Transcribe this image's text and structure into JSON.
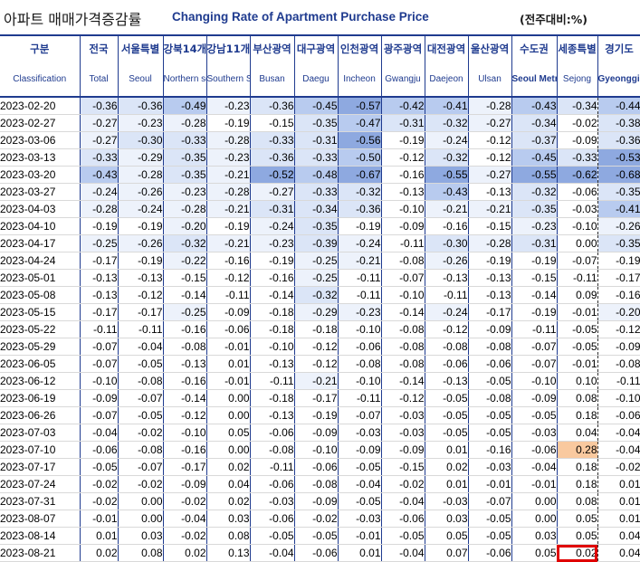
{
  "title": {
    "korean": "아파트 매매가격증감률",
    "english": "Changing Rate of Apartment Purchase Price",
    "unit": "(전주대비:%)"
  },
  "columns": [
    {
      "ko": "구분",
      "en": "Classification"
    },
    {
      "ko": "전국",
      "en": "Total"
    },
    {
      "ko": "서울특별",
      "en": "Seoul"
    },
    {
      "ko": "강북14개",
      "en": "Northern seoul"
    },
    {
      "ko": "강남11개",
      "en": "Southern Seoul"
    },
    {
      "ko": "부산광역",
      "en": "Busan"
    },
    {
      "ko": "대구광역",
      "en": "Daegu"
    },
    {
      "ko": "인천광역",
      "en": "Incheon"
    },
    {
      "ko": "광주광역",
      "en": "Gwangju"
    },
    {
      "ko": "대전광역",
      "en": "Daejeon"
    },
    {
      "ko": "울산광역",
      "en": "Ulsan"
    },
    {
      "ko": "수도권",
      "en": "Seoul Metropolitan Area"
    },
    {
      "ko": "세종특별",
      "en": "Sejong"
    },
    {
      "ko": "경기도",
      "en": "Gyeonggi-do"
    }
  ],
  "rows": [
    {
      "date": "2023-02-20",
      "values": [
        "-0.36",
        "-0.36",
        "-0.49",
        "-0.23",
        "-0.36",
        "-0.45",
        "-0.57",
        "-0.42",
        "-0.41",
        "-0.28",
        "-0.43",
        "-0.34",
        "-0.44"
      ]
    },
    {
      "date": "2023-02-27",
      "values": [
        "-0.27",
        "-0.23",
        "-0.28",
        "-0.19",
        "-0.15",
        "-0.35",
        "-0.47",
        "-0.31",
        "-0.32",
        "-0.27",
        "-0.34",
        "-0.02",
        "-0.38"
      ]
    },
    {
      "date": "2023-03-06",
      "values": [
        "-0.27",
        "-0.30",
        "-0.33",
        "-0.28",
        "-0.33",
        "-0.31",
        "-0.56",
        "-0.19",
        "-0.24",
        "-0.12",
        "-0.37",
        "-0.09",
        "-0.36"
      ]
    },
    {
      "date": "2023-03-13",
      "values": [
        "-0.33",
        "-0.29",
        "-0.35",
        "-0.23",
        "-0.36",
        "-0.33",
        "-0.50",
        "-0.12",
        "-0.32",
        "-0.12",
        "-0.45",
        "-0.33",
        "-0.53"
      ]
    },
    {
      "date": "2023-03-20",
      "values": [
        "-0.43",
        "-0.28",
        "-0.35",
        "-0.21",
        "-0.52",
        "-0.48",
        "-0.67",
        "-0.16",
        "-0.55",
        "-0.27",
        "-0.55",
        "-0.62",
        "-0.68"
      ]
    },
    {
      "date": "2023-03-27",
      "values": [
        "-0.24",
        "-0.26",
        "-0.23",
        "-0.28",
        "-0.27",
        "-0.33",
        "-0.32",
        "-0.13",
        "-0.43",
        "-0.13",
        "-0.32",
        "-0.06",
        "-0.35"
      ]
    },
    {
      "date": "2023-04-03",
      "values": [
        "-0.28",
        "-0.24",
        "-0.28",
        "-0.21",
        "-0.31",
        "-0.34",
        "-0.36",
        "-0.10",
        "-0.21",
        "-0.21",
        "-0.35",
        "-0.03",
        "-0.41"
      ]
    },
    {
      "date": "2023-04-10",
      "values": [
        "-0.19",
        "-0.19",
        "-0.20",
        "-0.19",
        "-0.24",
        "-0.35",
        "-0.19",
        "-0.09",
        "-0.16",
        "-0.15",
        "-0.23",
        "-0.10",
        "-0.26"
      ]
    },
    {
      "date": "2023-04-17",
      "values": [
        "-0.25",
        "-0.26",
        "-0.32",
        "-0.21",
        "-0.23",
        "-0.39",
        "-0.24",
        "-0.11",
        "-0.30",
        "-0.28",
        "-0.31",
        "0.00",
        "-0.35"
      ]
    },
    {
      "date": "2023-04-24",
      "values": [
        "-0.17",
        "-0.19",
        "-0.22",
        "-0.16",
        "-0.19",
        "-0.25",
        "-0.21",
        "-0.08",
        "-0.26",
        "-0.19",
        "-0.19",
        "-0.07",
        "-0.19"
      ]
    },
    {
      "date": "2023-05-01",
      "values": [
        "-0.13",
        "-0.13",
        "-0.15",
        "-0.12",
        "-0.16",
        "-0.25",
        "-0.11",
        "-0.07",
        "-0.13",
        "-0.13",
        "-0.15",
        "-0.11",
        "-0.17"
      ]
    },
    {
      "date": "2023-05-08",
      "values": [
        "-0.13",
        "-0.12",
        "-0.14",
        "-0.11",
        "-0.14",
        "-0.32",
        "-0.11",
        "-0.10",
        "-0.11",
        "-0.13",
        "-0.14",
        "0.09",
        "-0.16"
      ]
    },
    {
      "date": "2023-05-15",
      "values": [
        "-0.17",
        "-0.17",
        "-0.25",
        "-0.09",
        "-0.18",
        "-0.29",
        "-0.23",
        "-0.14",
        "-0.24",
        "-0.17",
        "-0.19",
        "-0.01",
        "-0.20"
      ]
    },
    {
      "date": "2023-05-22",
      "values": [
        "-0.11",
        "-0.11",
        "-0.16",
        "-0.06",
        "-0.18",
        "-0.18",
        "-0.10",
        "-0.08",
        "-0.12",
        "-0.09",
        "-0.11",
        "-0.05",
        "-0.12"
      ]
    },
    {
      "date": "2023-05-29",
      "values": [
        "-0.07",
        "-0.04",
        "-0.08",
        "-0.01",
        "-0.10",
        "-0.12",
        "-0.06",
        "-0.08",
        "-0.08",
        "-0.08",
        "-0.07",
        "-0.05",
        "-0.09"
      ]
    },
    {
      "date": "2023-06-05",
      "values": [
        "-0.07",
        "-0.05",
        "-0.13",
        "0.01",
        "-0.13",
        "-0.12",
        "-0.08",
        "-0.08",
        "-0.06",
        "-0.06",
        "-0.07",
        "-0.01",
        "-0.08"
      ]
    },
    {
      "date": "2023-06-12",
      "values": [
        "-0.10",
        "-0.08",
        "-0.16",
        "-0.01",
        "-0.11",
        "-0.21",
        "-0.10",
        "-0.14",
        "-0.13",
        "-0.05",
        "-0.10",
        "0.10",
        "-0.11"
      ]
    },
    {
      "date": "2023-06-19",
      "values": [
        "-0.09",
        "-0.07",
        "-0.14",
        "0.00",
        "-0.18",
        "-0.17",
        "-0.11",
        "-0.12",
        "-0.05",
        "-0.08",
        "-0.09",
        "0.08",
        "-0.10"
      ]
    },
    {
      "date": "2023-06-26",
      "values": [
        "-0.07",
        "-0.05",
        "-0.12",
        "0.00",
        "-0.13",
        "-0.19",
        "-0.07",
        "-0.03",
        "-0.05",
        "-0.05",
        "-0.05",
        "0.18",
        "-0.06"
      ]
    },
    {
      "date": "2023-07-03",
      "values": [
        "-0.04",
        "-0.02",
        "-0.10",
        "0.05",
        "-0.06",
        "-0.09",
        "-0.03",
        "-0.03",
        "-0.05",
        "-0.05",
        "-0.03",
        "0.04",
        "-0.04"
      ]
    },
    {
      "date": "2023-07-10",
      "values": [
        "-0.06",
        "-0.08",
        "-0.16",
        "0.00",
        "-0.08",
        "-0.10",
        "-0.09",
        "-0.09",
        "0.01",
        "-0.16",
        "-0.06",
        "0.28",
        "-0.04"
      ]
    },
    {
      "date": "2023-07-17",
      "values": [
        "-0.05",
        "-0.07",
        "-0.17",
        "0.02",
        "-0.11",
        "-0.06",
        "-0.05",
        "-0.15",
        "0.02",
        "-0.03",
        "-0.04",
        "0.18",
        "-0.02"
      ]
    },
    {
      "date": "2023-07-24",
      "values": [
        "-0.02",
        "-0.02",
        "-0.09",
        "0.04",
        "-0.06",
        "-0.08",
        "-0.04",
        "-0.02",
        "0.01",
        "-0.01",
        "-0.01",
        "0.18",
        "0.01"
      ]
    },
    {
      "date": "2023-07-31",
      "values": [
        "-0.02",
        "0.00",
        "-0.02",
        "0.02",
        "-0.03",
        "-0.09",
        "-0.05",
        "-0.04",
        "-0.03",
        "-0.07",
        "0.00",
        "0.08",
        "0.01"
      ]
    },
    {
      "date": "2023-08-07",
      "values": [
        "-0.01",
        "0.00",
        "-0.04",
        "0.03",
        "-0.06",
        "-0.02",
        "-0.03",
        "-0.06",
        "0.03",
        "-0.05",
        "0.00",
        "0.05",
        "0.01"
      ]
    },
    {
      "date": "2023-08-14",
      "values": [
        "0.01",
        "0.03",
        "-0.02",
        "0.08",
        "-0.05",
        "-0.05",
        "-0.01",
        "-0.05",
        "0.05",
        "-0.05",
        "0.03",
        "0.05",
        "0.04"
      ]
    },
    {
      "date": "2023-08-21",
      "values": [
        "0.02",
        "0.08",
        "0.02",
        "0.13",
        "-0.04",
        "-0.06",
        "0.01",
        "-0.04",
        "0.07",
        "-0.06",
        "0.05",
        "0.02",
        "0.04"
      ]
    }
  ],
  "colors": {
    "header_blue": "#1f3b8f",
    "shade_strong": "#8ea9e0",
    "shade_mid": "#b8cbef",
    "shade_light": "#dbe5f7",
    "shade_faint": "#edf2fb",
    "positive_highlight": "#f9c99f",
    "box_red": "#e00000"
  }
}
